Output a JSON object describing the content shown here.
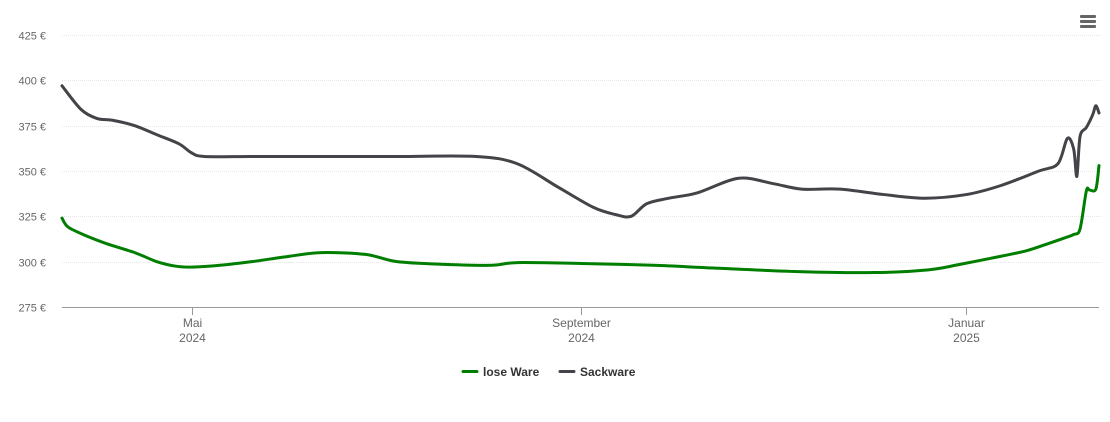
{
  "chart_data": {
    "type": "line",
    "ylim": [
      275,
      425
    ],
    "y_ticks": [
      {
        "value": 275,
        "label": "275 €"
      },
      {
        "value": 300,
        "label": "300 €"
      },
      {
        "value": 325,
        "label": "325 €"
      },
      {
        "value": 350,
        "label": "350 €"
      },
      {
        "value": 375,
        "label": "375 €"
      },
      {
        "value": 400,
        "label": "400 €"
      },
      {
        "value": 425,
        "label": "425 €"
      }
    ],
    "xlim": [
      "2024-03-21",
      "2025-02-12"
    ],
    "x_ticks": [
      {
        "date": "2024-05-01",
        "month": "Mai",
        "year": "2024"
      },
      {
        "date": "2024-09-01",
        "month": "September",
        "year": "2024"
      },
      {
        "date": "2025-01-01",
        "month": "Januar",
        "year": "2025"
      }
    ],
    "grid": "horizontal",
    "legend_position": "bottom-center",
    "series": [
      {
        "name": "lose Ware",
        "color": "#007e00",
        "points": [
          [
            "2024-03-21",
            324
          ],
          [
            "2024-03-23",
            319
          ],
          [
            "2024-03-29",
            314
          ],
          [
            "2024-04-04",
            310
          ],
          [
            "2024-04-13",
            305
          ],
          [
            "2024-04-20",
            300
          ],
          [
            "2024-04-26",
            297.5
          ],
          [
            "2024-05-01",
            297
          ],
          [
            "2024-05-10",
            298
          ],
          [
            "2024-05-20",
            300
          ],
          [
            "2024-06-01",
            303
          ],
          [
            "2024-06-11",
            305
          ],
          [
            "2024-06-25",
            304
          ],
          [
            "2024-07-05",
            300
          ],
          [
            "2024-07-20",
            298.5
          ],
          [
            "2024-08-04",
            298
          ],
          [
            "2024-08-12",
            299.5
          ],
          [
            "2024-09-01",
            299
          ],
          [
            "2024-09-24",
            298
          ],
          [
            "2024-10-13",
            296.5
          ],
          [
            "2024-11-09",
            294.5
          ],
          [
            "2024-12-03",
            294
          ],
          [
            "2024-12-20",
            295.5
          ],
          [
            "2024-12-30",
            298.5
          ],
          [
            "2025-01-12",
            303
          ],
          [
            "2025-01-20",
            306
          ],
          [
            "2025-01-27",
            310
          ],
          [
            "2025-02-01",
            313
          ],
          [
            "2025-02-04",
            315
          ],
          [
            "2025-02-06",
            318
          ],
          [
            "2025-02-08",
            339
          ],
          [
            "2025-02-09",
            339.5
          ],
          [
            "2025-02-11",
            340
          ],
          [
            "2025-02-12",
            353
          ]
        ]
      },
      {
        "name": "Sackware",
        "color": "#434348",
        "points": [
          [
            "2024-03-21",
            397
          ],
          [
            "2024-03-27",
            384
          ],
          [
            "2024-04-01",
            379
          ],
          [
            "2024-04-06",
            378
          ],
          [
            "2024-04-13",
            375
          ],
          [
            "2024-04-20",
            370
          ],
          [
            "2024-04-27",
            365
          ],
          [
            "2024-05-01",
            360
          ],
          [
            "2024-05-05",
            358
          ],
          [
            "2024-05-20",
            358
          ],
          [
            "2024-06-09",
            358
          ],
          [
            "2024-07-05",
            358
          ],
          [
            "2024-07-30",
            358
          ],
          [
            "2024-08-12",
            354
          ],
          [
            "2024-08-25",
            341
          ],
          [
            "2024-09-05",
            330
          ],
          [
            "2024-09-12",
            326
          ],
          [
            "2024-09-17",
            325
          ],
          [
            "2024-09-22",
            332
          ],
          [
            "2024-09-29",
            335
          ],
          [
            "2024-10-08",
            338
          ],
          [
            "2024-10-21",
            346
          ],
          [
            "2024-11-01",
            343
          ],
          [
            "2024-11-10",
            340
          ],
          [
            "2024-11-22",
            340
          ],
          [
            "2024-12-06",
            337
          ],
          [
            "2024-12-19",
            335
          ],
          [
            "2025-01-01",
            337
          ],
          [
            "2025-01-12",
            342
          ],
          [
            "2025-01-24",
            350
          ],
          [
            "2025-01-30",
            354
          ],
          [
            "2025-02-02",
            368
          ],
          [
            "2025-02-04",
            362
          ],
          [
            "2025-02-05",
            347
          ],
          [
            "2025-02-06",
            369
          ],
          [
            "2025-02-08",
            374
          ],
          [
            "2025-02-10",
            381
          ],
          [
            "2025-02-11",
            386
          ],
          [
            "2025-02-12",
            382
          ]
        ]
      }
    ]
  }
}
